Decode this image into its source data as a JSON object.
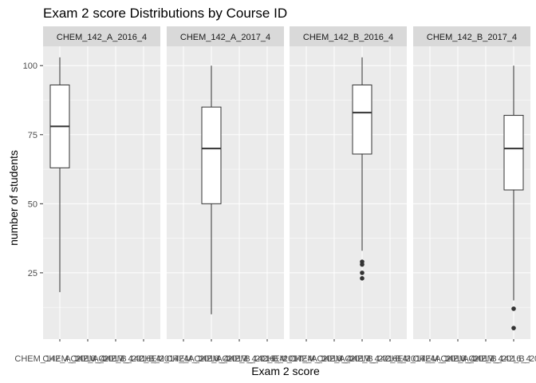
{
  "chart_data": {
    "type": "box",
    "title": "Exam 2 score Distributions by Course ID",
    "xlabel": "Exam 2 score",
    "ylabel": "number of students",
    "ylim": [
      1,
      107
    ],
    "yticks": [
      25,
      50,
      75,
      100
    ],
    "x_categories": [
      "CHEM_142_A_2016_4",
      "CHEM_142_A_2017_4",
      "CHEM_142_B_2016_4",
      "CHEM_142_B_2017_4"
    ],
    "grid": true,
    "colors": {
      "panel_bg": "#ebebeb",
      "strip_bg": "#d9d9d9",
      "grid": "#ffffff",
      "box_fill": "#ffffff",
      "box_stroke": "#333333",
      "outlier": "#333333"
    },
    "panels": [
      {
        "facet": "CHEM_142_A_2016_4",
        "x_index": 0,
        "whisker_low": 18,
        "q1": 63,
        "median": 78,
        "q3": 93,
        "whisker_high": 103,
        "outliers": []
      },
      {
        "facet": "CHEM_142_A_2017_4",
        "x_index": 1,
        "whisker_low": 10,
        "q1": 50,
        "median": 70,
        "q3": 85,
        "whisker_high": 100,
        "outliers": []
      },
      {
        "facet": "CHEM_142_B_2016_4",
        "x_index": 2,
        "whisker_low": 33,
        "q1": 68,
        "median": 83,
        "q3": 93,
        "whisker_high": 103,
        "outliers": [
          29,
          28,
          25,
          23
        ]
      },
      {
        "facet": "CHEM_142_B_2017_4",
        "x_index": 3,
        "whisker_low": 15,
        "q1": 55,
        "median": 70,
        "q3": 82,
        "whisker_high": 100,
        "outliers": [
          12,
          5
        ]
      }
    ]
  }
}
